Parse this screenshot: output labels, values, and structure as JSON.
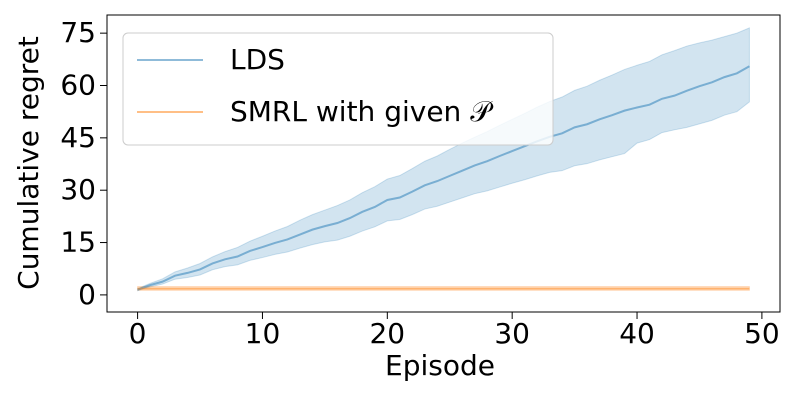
{
  "chart_data": {
    "type": "line",
    "xlabel": "Episode",
    "ylabel": "Cumulative regret",
    "x": [
      0,
      1,
      2,
      3,
      4,
      5,
      6,
      7,
      8,
      9,
      10,
      11,
      12,
      13,
      14,
      15,
      16,
      17,
      18,
      19,
      20,
      21,
      22,
      23,
      24,
      25,
      26,
      27,
      28,
      29,
      30,
      31,
      32,
      33,
      34,
      35,
      36,
      37,
      38,
      39,
      40,
      41,
      42,
      43,
      44,
      45,
      46,
      47,
      48,
      49
    ],
    "series": [
      {
        "name": "LDS",
        "color": "#1f77b4",
        "values": [
          1.5,
          2.8,
          3.8,
          5.5,
          6.3,
          7.3,
          9.0,
          10.2,
          11.0,
          12.6,
          13.7,
          14.9,
          15.9,
          17.3,
          18.7,
          19.7,
          20.6,
          22.0,
          23.8,
          25.2,
          27.2,
          27.9,
          29.6,
          31.4,
          32.6,
          34.1,
          35.6,
          37.1,
          38.3,
          39.8,
          41.2,
          42.6,
          44.0,
          45.3,
          46.3,
          48.0,
          48.9,
          50.3,
          51.5,
          52.8,
          53.7,
          54.5,
          56.2,
          57.1,
          58.5,
          59.8,
          60.9,
          62.4,
          63.5,
          65.5
        ],
        "upper": [
          1.8,
          3.3,
          4.6,
          6.6,
          7.7,
          9.0,
          10.9,
          12.4,
          13.6,
          15.4,
          16.8,
          18.3,
          19.6,
          21.4,
          23.0,
          24.3,
          25.6,
          27.2,
          29.3,
          31.0,
          33.2,
          34.2,
          36.2,
          38.3,
          39.8,
          41.7,
          43.5,
          45.2,
          46.8,
          48.6,
          50.3,
          52.0,
          53.8,
          55.4,
          56.7,
          58.6,
          59.8,
          61.5,
          63.0,
          64.6,
          65.8,
          66.9,
          68.8,
          70.0,
          71.3,
          72.2,
          73.0,
          74.0,
          75.0,
          76.5
        ],
        "lower": [
          1.2,
          2.3,
          3.1,
          4.5,
          5.0,
          5.7,
          7.2,
          8.1,
          8.6,
          9.9,
          10.7,
          11.6,
          12.3,
          13.4,
          14.4,
          15.2,
          15.7,
          16.8,
          18.3,
          19.5,
          21.2,
          21.6,
          23.0,
          24.6,
          25.4,
          26.6,
          27.8,
          29.0,
          29.8,
          30.9,
          32.0,
          33.0,
          34.1,
          35.1,
          35.6,
          37.0,
          37.6,
          38.7,
          39.6,
          40.5,
          43.5,
          44.5,
          46.5,
          47.3,
          48.0,
          49.0,
          50.0,
          51.5,
          52.5,
          55.3
        ]
      },
      {
        "name": "SMRL with given 𝒫",
        "color": "#ff7f0e",
        "values": [
          1.8,
          1.8,
          1.8,
          1.8,
          1.8,
          1.8,
          1.8,
          1.8,
          1.8,
          1.8,
          1.8,
          1.8,
          1.8,
          1.8,
          1.8,
          1.8,
          1.8,
          1.8,
          1.8,
          1.8,
          1.8,
          1.8,
          1.8,
          1.8,
          1.8,
          1.8,
          1.8,
          1.8,
          1.8,
          1.8,
          1.8,
          1.8,
          1.8,
          1.8,
          1.8,
          1.8,
          1.8,
          1.8,
          1.8,
          1.8,
          1.8,
          1.8,
          1.8,
          1.8,
          1.8,
          1.8,
          1.8,
          1.8,
          1.8,
          1.8
        ],
        "upper": [
          2.4,
          2.4,
          2.4,
          2.4,
          2.4,
          2.4,
          2.4,
          2.4,
          2.4,
          2.4,
          2.4,
          2.4,
          2.4,
          2.4,
          2.4,
          2.4,
          2.4,
          2.4,
          2.4,
          2.4,
          2.4,
          2.4,
          2.4,
          2.4,
          2.4,
          2.4,
          2.4,
          2.4,
          2.4,
          2.4,
          2.4,
          2.4,
          2.4,
          2.4,
          2.4,
          2.4,
          2.4,
          2.4,
          2.4,
          2.4,
          2.4,
          2.4,
          2.4,
          2.4,
          2.4,
          2.4,
          2.4,
          2.4,
          2.4,
          2.4
        ],
        "lower": [
          1.3,
          1.3,
          1.3,
          1.3,
          1.3,
          1.3,
          1.3,
          1.3,
          1.3,
          1.3,
          1.3,
          1.3,
          1.3,
          1.3,
          1.3,
          1.3,
          1.3,
          1.3,
          1.3,
          1.3,
          1.3,
          1.3,
          1.3,
          1.3,
          1.3,
          1.3,
          1.3,
          1.3,
          1.3,
          1.3,
          1.3,
          1.3,
          1.3,
          1.3,
          1.3,
          1.3,
          1.3,
          1.3,
          1.3,
          1.3,
          1.3,
          1.3,
          1.3,
          1.3,
          1.3,
          1.3,
          1.3,
          1.3,
          1.3,
          1.3
        ]
      }
    ],
    "xlim": [
      -2.45,
      51.45
    ],
    "ylim": [
      -4.9,
      80.2
    ],
    "xticks": [
      0,
      10,
      20,
      30,
      40,
      50
    ],
    "yticks": [
      0,
      15,
      30,
      45,
      60,
      75
    ],
    "legend": "upper left",
    "grid": false
  }
}
